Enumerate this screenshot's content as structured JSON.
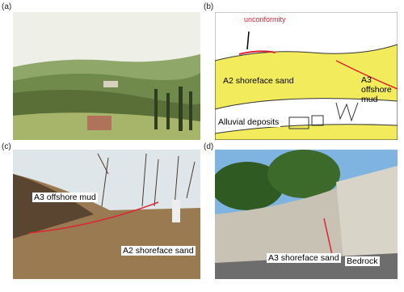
{
  "panels": [
    {
      "label": "(a)"
    },
    {
      "label": "(b)",
      "annotations": [
        "unconformity",
        "A2 shoreface sand",
        "A3 offshore mud",
        "Alluvial deposits"
      ]
    },
    {
      "label": "(c)",
      "annotations": [
        "A3 offshore mud",
        "A2 shoreface sand"
      ]
    },
    {
      "label": "(d)",
      "annotations": [
        "A3 shoreface sand",
        "Bedrock"
      ]
    }
  ]
}
